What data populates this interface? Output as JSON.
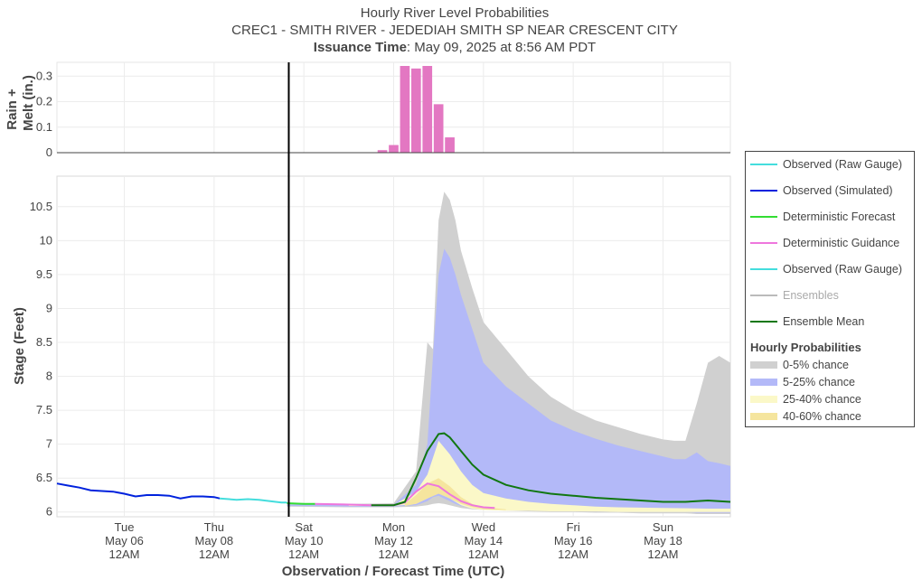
{
  "chart_data": {
    "type": "area",
    "title": "Hourly River Level Probabilities",
    "subtitle": "CREC1 - SMITH RIVER - JEDEDIAH SMITH SP NEAR CRESCENT CITY",
    "issuance_label": "Issuance Time",
    "issuance_value": ": May 09, 2025 at 8:56 AM PDT",
    "xlabel": "Observation / Forecast Time (UTC)",
    "x_ticks": [
      {
        "day": "Tue",
        "date": "May 06",
        "time": "12AM",
        "x": "2025-05-06 00:00"
      },
      {
        "day": "Thu",
        "date": "May 08",
        "time": "12AM",
        "x": "2025-05-08 00:00"
      },
      {
        "day": "Sat",
        "date": "May 10",
        "time": "12AM",
        "x": "2025-05-10 00:00"
      },
      {
        "day": "Mon",
        "date": "May 12",
        "time": "12AM",
        "x": "2025-05-12 00:00"
      },
      {
        "day": "Wed",
        "date": "May 14",
        "time": "12AM",
        "x": "2025-05-14 00:00"
      },
      {
        "day": "Fri",
        "date": "May 16",
        "time": "12AM",
        "x": "2025-05-16 00:00"
      },
      {
        "day": "Sun",
        "date": "May 18",
        "time": "12AM",
        "x": "2025-05-18 00:00"
      }
    ],
    "xlim": [
      "2025-05-04 12:00",
      "2025-05-19 12:00"
    ],
    "issuance_line_x": "2025-05-09 15:56",
    "rain_panel": {
      "ylabel_line1": "Rain +",
      "ylabel_line2": "Melt (in.)",
      "ylim": [
        0,
        0.34
      ],
      "yticks": [
        "0",
        "0.1",
        "0.2",
        "0.3"
      ],
      "bar_color": "#e377c2",
      "bars": [
        {
          "x": "2025-05-11 18:00",
          "value": 0.01
        },
        {
          "x": "2025-05-12 00:00",
          "value": 0.03
        },
        {
          "x": "2025-05-12 06:00",
          "value": 0.34
        },
        {
          "x": "2025-05-12 12:00",
          "value": 0.33
        },
        {
          "x": "2025-05-12 18:00",
          "value": 0.34
        },
        {
          "x": "2025-05-13 00:00",
          "value": 0.19
        },
        {
          "x": "2025-05-13 06:00",
          "value": 0.06
        }
      ]
    },
    "stage_panel": {
      "ylabel": "Stage (Feet)",
      "ylim": [
        5.93,
        10.95
      ],
      "yticks": [
        "6",
        "6.5",
        "7",
        "7.5",
        "8",
        "8.5",
        "9",
        "9.5",
        "10",
        "10.5"
      ],
      "band_0_5": {
        "color": "#d0d0d0",
        "x": [
          "2025-05-09 15:00",
          "2025-05-11 00:00",
          "2025-05-12 00:00",
          "2025-05-12 12:00",
          "2025-05-12 18:00",
          "2025-05-12 21:00",
          "2025-05-13 00:00",
          "2025-05-13 03:00",
          "2025-05-13 06:00",
          "2025-05-13 09:00",
          "2025-05-13 12:00",
          "2025-05-13 18:00",
          "2025-05-14 00:00",
          "2025-05-14 12:00",
          "2025-05-15 00:00",
          "2025-05-15 12:00",
          "2025-05-16 00:00",
          "2025-05-16 12:00",
          "2025-05-17 00:00",
          "2025-05-17 12:00",
          "2025-05-18 00:00",
          "2025-05-18 06:00",
          "2025-05-18 12:00",
          "2025-05-18 18:00",
          "2025-05-19 00:00",
          "2025-05-19 06:00",
          "2025-05-19 12:00"
        ],
        "upper": [
          6.12,
          6.12,
          6.13,
          6.6,
          8.5,
          8.4,
          10.3,
          10.72,
          10.6,
          10.3,
          9.85,
          9.3,
          8.8,
          8.4,
          8.0,
          7.7,
          7.5,
          7.35,
          7.25,
          7.15,
          7.07,
          7.05,
          7.05,
          7.6,
          8.2,
          8.3,
          8.2
        ],
        "lower": [
          6.08,
          6.07,
          6.07,
          6.08,
          6.1,
          6.12,
          6.13,
          6.12,
          6.1,
          6.08,
          6.06,
          6.04,
          6.03,
          6.02,
          6.01,
          6.0,
          6.0,
          5.99,
          5.99,
          5.98,
          5.98,
          5.98,
          5.98,
          5.97,
          5.97,
          5.97,
          5.97
        ]
      },
      "band_5_25": {
        "color": "#b3b9f8",
        "x": [
          "2025-05-09 15:00",
          "2025-05-11 00:00",
          "2025-05-12 00:00",
          "2025-05-12 12:00",
          "2025-05-12 18:00",
          "2025-05-12 21:00",
          "2025-05-13 00:00",
          "2025-05-13 03:00",
          "2025-05-13 06:00",
          "2025-05-13 09:00",
          "2025-05-13 12:00",
          "2025-05-13 18:00",
          "2025-05-14 00:00",
          "2025-05-14 12:00",
          "2025-05-15 00:00",
          "2025-05-15 12:00",
          "2025-05-16 00:00",
          "2025-05-16 12:00",
          "2025-05-17 00:00",
          "2025-05-17 12:00",
          "2025-05-18 00:00",
          "2025-05-18 06:00",
          "2025-05-18 12:00",
          "2025-05-18 18:00",
          "2025-05-19 00:00",
          "2025-05-19 06:00",
          "2025-05-19 12:00"
        ],
        "upper": [
          6.11,
          6.11,
          6.11,
          6.4,
          7.0,
          8.3,
          9.5,
          9.88,
          9.75,
          9.5,
          9.2,
          8.7,
          8.2,
          7.85,
          7.6,
          7.35,
          7.2,
          7.08,
          6.98,
          6.9,
          6.82,
          6.78,
          6.78,
          6.88,
          6.75,
          6.72,
          6.68
        ],
        "lower": [
          6.09,
          6.08,
          6.08,
          6.1,
          6.16,
          6.22,
          6.24,
          6.2,
          6.16,
          6.12,
          6.09,
          6.06,
          6.05,
          6.04,
          6.03,
          6.02,
          6.01,
          6.01,
          6.0,
          6.0,
          6.0,
          6.0,
          6.0,
          5.99,
          5.99,
          5.99,
          5.99
        ]
      },
      "band_25_40": {
        "color": "#fbf8c8",
        "x": [
          "2025-05-11 00:00",
          "2025-05-12 00:00",
          "2025-05-12 12:00",
          "2025-05-12 18:00",
          "2025-05-13 00:00",
          "2025-05-13 06:00",
          "2025-05-13 12:00",
          "2025-05-13 18:00",
          "2025-05-14 00:00",
          "2025-05-14 12:00",
          "2025-05-15 00:00",
          "2025-05-15 12:00",
          "2025-05-16 00:00",
          "2025-05-16 12:00",
          "2025-05-17 00:00",
          "2025-05-18 00:00",
          "2025-05-19 00:00",
          "2025-05-19 12:00"
        ],
        "upper": [
          6.1,
          6.1,
          6.3,
          6.55,
          7.05,
          6.85,
          6.6,
          6.4,
          6.28,
          6.2,
          6.15,
          6.12,
          6.1,
          6.08,
          6.07,
          6.06,
          6.05,
          6.05
        ],
        "lower": [
          6.09,
          6.09,
          6.12,
          6.2,
          6.28,
          6.2,
          6.1,
          6.05,
          6.03,
          6.02,
          6.02,
          6.01,
          6.01,
          6.01,
          6.0,
          6.0,
          6.0,
          6.0
        ]
      },
      "band_40_60": {
        "color": "#f5e59e",
        "x": [
          "2025-05-12 06:00",
          "2025-05-12 12:00",
          "2025-05-12 18:00",
          "2025-05-13 00:00",
          "2025-05-13 06:00",
          "2025-05-13 12:00",
          "2025-05-13 18:00",
          "2025-05-14 00:00",
          "2025-05-14 12:00"
        ],
        "upper": [
          6.12,
          6.25,
          6.42,
          6.5,
          6.38,
          6.22,
          6.12,
          6.07,
          6.04
        ],
        "lower": [
          6.09,
          6.12,
          6.2,
          6.27,
          6.2,
          6.12,
          6.07,
          6.04,
          6.03
        ]
      },
      "observed_simulated": {
        "color": "#0022dd",
        "x": [
          "2025-05-04 12:00",
          "2025-05-04 18:00",
          "2025-05-05 00:00",
          "2025-05-05 06:00",
          "2025-05-05 12:00",
          "2025-05-05 18:00",
          "2025-05-06 00:00",
          "2025-05-06 06:00",
          "2025-05-06 12:00",
          "2025-05-06 18:00",
          "2025-05-07 00:00",
          "2025-05-07 06:00",
          "2025-05-07 12:00",
          "2025-05-07 18:00",
          "2025-05-08 00:00",
          "2025-05-08 03:00"
        ],
        "y": [
          6.42,
          6.39,
          6.36,
          6.32,
          6.31,
          6.3,
          6.27,
          6.23,
          6.25,
          6.25,
          6.24,
          6.2,
          6.23,
          6.23,
          6.22,
          6.2
        ]
      },
      "observed_raw": {
        "color": "#44dddd",
        "x": [
          "2025-05-08 03:00",
          "2025-05-08 12:00",
          "2025-05-08 18:00",
          "2025-05-09 00:00",
          "2025-05-09 06:00",
          "2025-05-09 12:00",
          "2025-05-09 15:00"
        ],
        "y": [
          6.2,
          6.18,
          6.19,
          6.18,
          6.16,
          6.14,
          6.14
        ]
      },
      "deterministic_forecast": {
        "color": "#33dd33",
        "x": [
          "2025-05-09 15:00",
          "2025-05-10 00:00",
          "2025-05-10 06:00"
        ],
        "y": [
          6.13,
          6.12,
          6.12
        ]
      },
      "deterministic_guidance": {
        "color": "#ee77dd",
        "x": [
          "2025-05-10 06:00",
          "2025-05-11 00:00",
          "2025-05-11 12:00",
          "2025-05-12 00:00",
          "2025-05-12 06:00",
          "2025-05-12 12:00",
          "2025-05-12 18:00",
          "2025-05-13 00:00",
          "2025-05-13 06:00",
          "2025-05-13 12:00",
          "2025-05-13 18:00",
          "2025-05-14 00:00",
          "2025-05-14 06:00"
        ],
        "y": [
          6.12,
          6.11,
          6.1,
          6.1,
          6.14,
          6.3,
          6.42,
          6.38,
          6.26,
          6.16,
          6.1,
          6.07,
          6.06
        ]
      },
      "ensemble_mean": {
        "color": "#117711",
        "x": [
          "2025-05-11 12:00",
          "2025-05-12 00:00",
          "2025-05-12 06:00",
          "2025-05-12 12:00",
          "2025-05-12 18:00",
          "2025-05-13 00:00",
          "2025-05-13 03:00",
          "2025-05-13 06:00",
          "2025-05-13 12:00",
          "2025-05-13 18:00",
          "2025-05-14 00:00",
          "2025-05-14 12:00",
          "2025-05-15 00:00",
          "2025-05-15 12:00",
          "2025-05-16 00:00",
          "2025-05-16 12:00",
          "2025-05-17 00:00",
          "2025-05-17 12:00",
          "2025-05-18 00:00",
          "2025-05-18 12:00",
          "2025-05-19 00:00",
          "2025-05-19 12:00"
        ],
        "y": [
          6.1,
          6.1,
          6.15,
          6.5,
          6.9,
          7.15,
          7.16,
          7.1,
          6.9,
          6.7,
          6.55,
          6.4,
          6.32,
          6.27,
          6.24,
          6.21,
          6.19,
          6.17,
          6.15,
          6.15,
          6.17,
          6.15
        ]
      }
    },
    "legend": {
      "items": [
        {
          "label": "Observed (Raw Gauge)",
          "color": "#44dddd",
          "kind": "line"
        },
        {
          "label": "Observed (Simulated)",
          "color": "#0022dd",
          "kind": "line"
        },
        {
          "label": "Deterministic Forecast",
          "color": "#33dd33",
          "kind": "line"
        },
        {
          "label": "Deterministic Guidance",
          "color": "#ee77dd",
          "kind": "line"
        },
        {
          "label": "Observed (Raw Gauge)",
          "color": "#44dddd",
          "kind": "line"
        },
        {
          "label": "Ensembles",
          "color": "#bbbbbb",
          "kind": "line",
          "muted": true
        },
        {
          "label": "Ensemble Mean",
          "color": "#117711",
          "kind": "line"
        }
      ],
      "group_title": "Hourly Probabilities",
      "fills": [
        {
          "label": "0-5% chance",
          "color": "#d0d0d0"
        },
        {
          "label": "5-25% chance",
          "color": "#b3b9f8"
        },
        {
          "label": "25-40% chance",
          "color": "#fbf8c8"
        },
        {
          "label": "40-60% chance",
          "color": "#f5e59e"
        }
      ],
      "placement": "right"
    }
  }
}
